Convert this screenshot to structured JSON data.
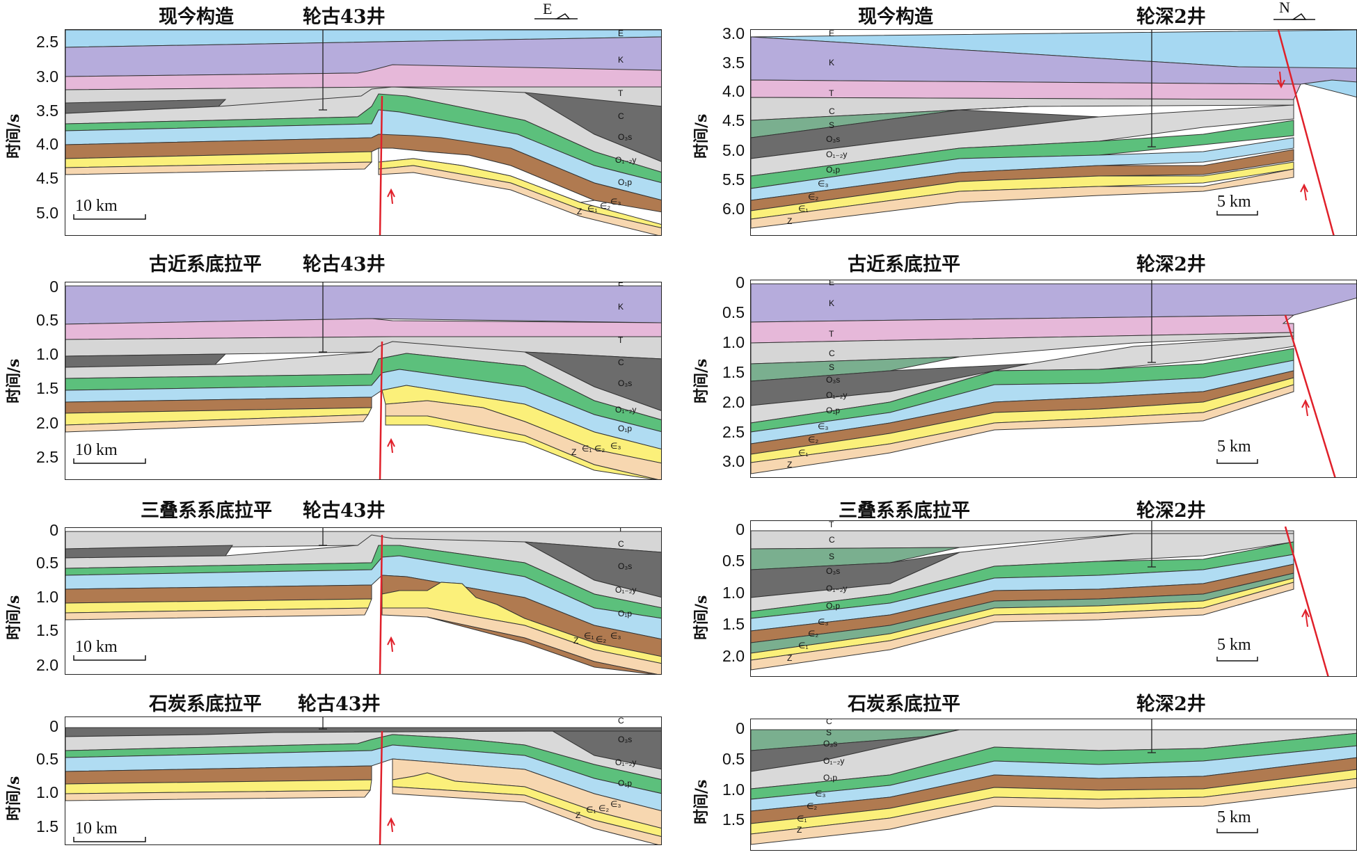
{
  "colors": {
    "E": "#a6d8f2",
    "K": "#b6acdc",
    "T": "#e6b8d9",
    "C": "#d6d6d6",
    "S": "#7aaf8f",
    "O3s": "#6c6c6c",
    "O12y": "#d9d9d9",
    "O1p": "#5cc07c",
    "O1p_blue": "#b0dcf2",
    "e3": "#b07a50",
    "e2": "#fbf07a",
    "e1": "#f7d7b0",
    "fault": "#e0202a"
  },
  "panels": [
    {
      "title": "现今构造",
      "well": "轮古43井",
      "ticks": [
        "2.5",
        "3.0",
        "3.5",
        "4.0",
        "4.5",
        "5.0"
      ],
      "scale": "10 km",
      "compass": "E"
    },
    {
      "title": "现今构造",
      "well": "轮深2井",
      "ticks": [
        "3.0",
        "3.5",
        "4.0",
        "4.5",
        "5.0",
        "5.5",
        "6.0"
      ],
      "scale": "5 km",
      "compass": "N"
    },
    {
      "title": "古近系底拉平",
      "well": "轮古43井",
      "ticks": [
        "0",
        "0.5",
        "1.0",
        "1.5",
        "2.0",
        "2.5"
      ],
      "scale": "10 km"
    },
    {
      "title": "古近系底拉平",
      "well": "轮深2井",
      "ticks": [
        "0",
        "0.5",
        "1.0",
        "1.5",
        "2.0",
        "2.5",
        "3.0"
      ],
      "scale": "5 km"
    },
    {
      "title": "三叠系系底拉平",
      "well": "轮古43井",
      "ticks": [
        "0",
        "0.5",
        "1.0",
        "1.5",
        "2.0"
      ],
      "scale": "10 km"
    },
    {
      "title": "三叠系系底拉平",
      "well": "轮深2井",
      "ticks": [
        "0",
        "0.5",
        "1.0",
        "1.5",
        "2.0"
      ],
      "scale": "5 km"
    },
    {
      "title": "石炭系底拉平",
      "well": "轮古43井",
      "ticks": [
        "0",
        "0.5",
        "1.0",
        "1.5"
      ],
      "scale": "10 km"
    },
    {
      "title": "石炭系底拉平",
      "well": "轮深2井",
      "ticks": [
        "0",
        "0.5",
        "1.0",
        "1.5"
      ],
      "scale": "5 km"
    }
  ],
  "ylabel": "时间/s",
  "layer_labels": {
    "E": "E",
    "K": "K",
    "T": "T",
    "C": "C",
    "S": "S",
    "O3s": "O₃s",
    "O12y": "O₁₋₂y",
    "O1p": "O₁p",
    "e3": "∈₃",
    "e2": "∈₂",
    "e1": "∈₁",
    "Z": "Z"
  }
}
